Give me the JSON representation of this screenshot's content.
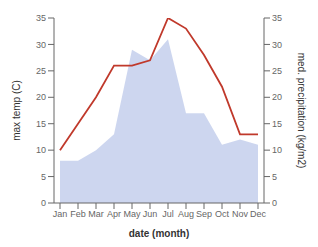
{
  "chart_data": {
    "type": "line",
    "categories": [
      "Jan",
      "Feb",
      "Mar",
      "Apr",
      "May",
      "Jun",
      "Jul",
      "Aug",
      "Sep",
      "Oct",
      "Nov",
      "Dec"
    ],
    "series": [
      {
        "type": "area",
        "color": "#b8c4e8",
        "axis": "y2",
        "values": [
          8,
          8,
          10,
          13,
          29,
          27,
          31,
          17,
          17,
          11,
          12,
          11
        ]
      },
      {
        "type": "line",
        "color": "#c0392b",
        "values": [
          10,
          15,
          20,
          26,
          26,
          27,
          35,
          33,
          28,
          22,
          13,
          13
        ]
      }
    ],
    "xlabel": "date (month)",
    "ylabel": "max temp (C)",
    "y2label": "med. precipitation (kg/m2)",
    "ylim": [
      0,
      35
    ],
    "yticks": [
      0,
      5,
      10,
      15,
      20,
      25,
      30,
      35
    ],
    "y2lim": [
      0,
      35
    ],
    "y2ticks": [
      0,
      5,
      10,
      15,
      20,
      25,
      30,
      35
    ],
    "grid": false
  }
}
